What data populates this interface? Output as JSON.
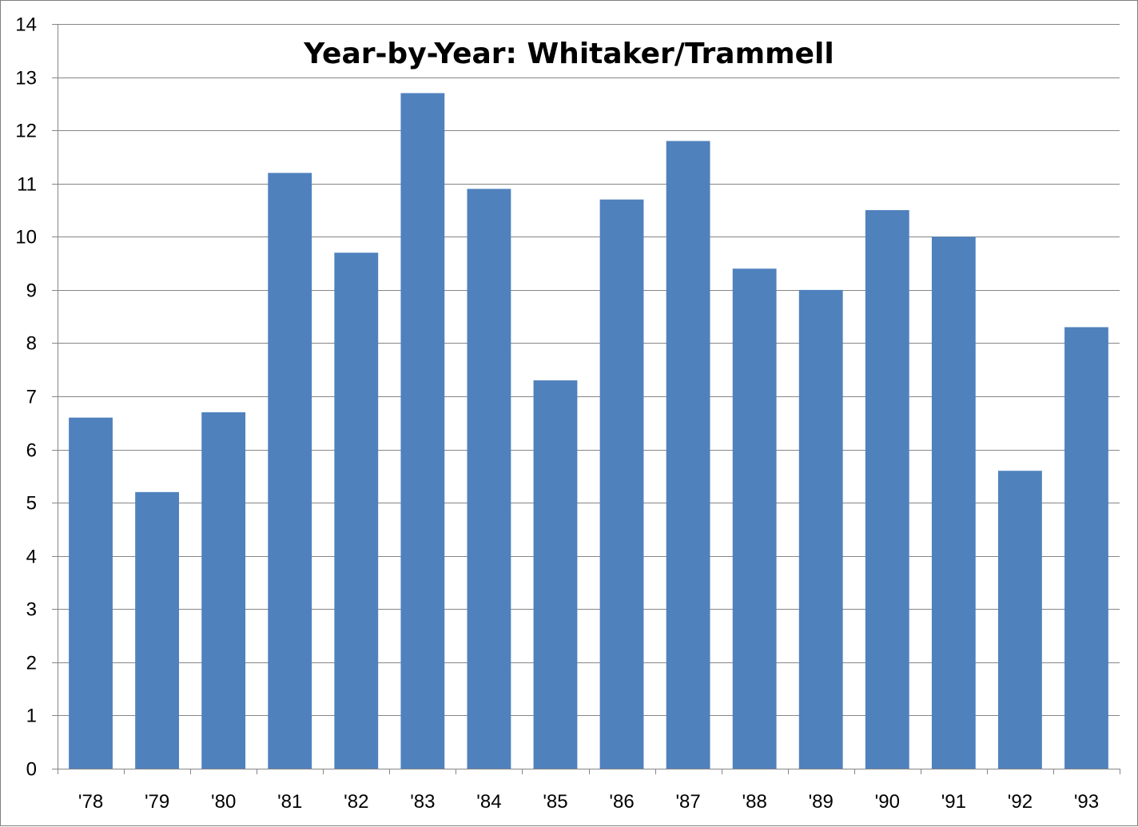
{
  "chart_data": {
    "type": "bar",
    "title": "Year-by-Year: Whitaker/Trammell",
    "xlabel": "",
    "ylabel": "",
    "categories": [
      "'78",
      "'79",
      "'80",
      "'81",
      "'82",
      "'83",
      "'84",
      "'85",
      "'86",
      "'87",
      "'88",
      "'89",
      "'90",
      "'91",
      "'92",
      "'93"
    ],
    "values": [
      6.6,
      5.2,
      6.7,
      11.2,
      9.7,
      12.7,
      10.9,
      7.3,
      10.7,
      11.8,
      9.4,
      9.0,
      10.5,
      10.0,
      5.6,
      8.3
    ],
    "ylim": [
      0,
      14
    ],
    "yticks": [
      "0",
      "1",
      "2",
      "3",
      "4",
      "5",
      "6",
      "7",
      "8",
      "9",
      "10",
      "11",
      "12",
      "13",
      "14"
    ],
    "grid": true,
    "legend": "none",
    "colors": {
      "bar": "#4f81bd",
      "gridline": "#868686",
      "axis": "#868686"
    }
  }
}
